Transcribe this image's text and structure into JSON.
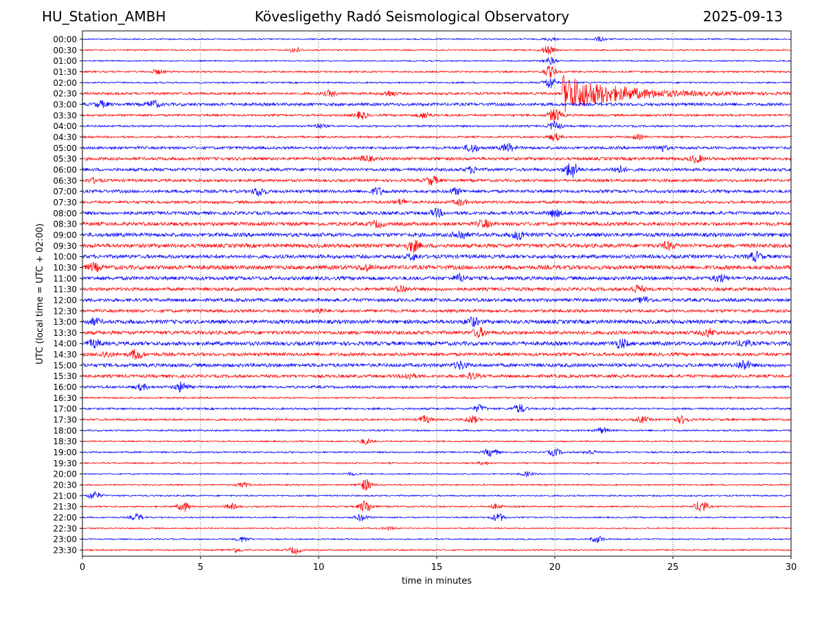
{
  "header": {
    "station": "HU_Station_AMBH",
    "observatory": "Kövesligethy Radó Seismological Observatory",
    "date": "2025-09-13"
  },
  "chart_data": {
    "type": "line",
    "title": "Kövesligethy Radó Seismological Observatory",
    "xlabel": "time in minutes",
    "ylabel": "UTC (local time = UTC + 02:00)",
    "xlim": [
      0,
      30
    ],
    "xticks": [
      "0",
      "5",
      "10",
      "15",
      "20",
      "25",
      "30"
    ],
    "grid": "vertical dotted lines at 5-minute ticks",
    "colors": {
      "even_rows": "#0000ff",
      "odd_rows": "#ff0000"
    },
    "rows": [
      {
        "label": "00:00",
        "amp": 1.0,
        "events": [
          {
            "t": 21.9,
            "a": 3
          },
          {
            "t": 19.8,
            "a": 2
          }
        ]
      },
      {
        "label": "00:30",
        "amp": 1.0,
        "events": [
          {
            "t": 9.0,
            "a": 4
          },
          {
            "t": 19.7,
            "a": 6
          }
        ]
      },
      {
        "label": "01:00",
        "amp": 0.9,
        "events": [
          {
            "t": 19.8,
            "a": 5
          }
        ]
      },
      {
        "label": "01:30",
        "amp": 1.2,
        "events": [
          {
            "t": 3.2,
            "a": 3
          },
          {
            "t": 19.8,
            "a": 8
          }
        ]
      },
      {
        "label": "02:00",
        "amp": 1.1,
        "events": [
          {
            "t": 19.8,
            "a": 9
          }
        ]
      },
      {
        "label": "02:30",
        "amp": 1.8,
        "events": [
          {
            "t": 10.5,
            "a": 4
          },
          {
            "t": 13.0,
            "a": 4
          },
          {
            "t": 20.3,
            "a": 28
          }
        ]
      },
      {
        "label": "03:00",
        "amp": 2.2,
        "events": [
          {
            "t": 0.8,
            "a": 4
          },
          {
            "t": 3.0,
            "a": 5
          }
        ]
      },
      {
        "label": "03:30",
        "amp": 1.6,
        "events": [
          {
            "t": 11.8,
            "a": 5
          },
          {
            "t": 14.5,
            "a": 4
          },
          {
            "t": 20.0,
            "a": 10
          }
        ]
      },
      {
        "label": "04:00",
        "amp": 1.4,
        "events": [
          {
            "t": 10.0,
            "a": 3
          },
          {
            "t": 20.0,
            "a": 6
          }
        ]
      },
      {
        "label": "04:30",
        "amp": 1.4,
        "events": [
          {
            "t": 20.0,
            "a": 5
          },
          {
            "t": 23.5,
            "a": 3
          }
        ]
      },
      {
        "label": "05:00",
        "amp": 2.0,
        "events": [
          {
            "t": 16.5,
            "a": 6
          },
          {
            "t": 18.0,
            "a": 6
          },
          {
            "t": 24.5,
            "a": 4
          }
        ]
      },
      {
        "label": "05:30",
        "amp": 2.2,
        "events": [
          {
            "t": 12.0,
            "a": 4
          },
          {
            "t": 26.0,
            "a": 5
          }
        ]
      },
      {
        "label": "06:00",
        "amp": 2.2,
        "events": [
          {
            "t": 16.5,
            "a": 4
          },
          {
            "t": 20.7,
            "a": 12
          },
          {
            "t": 22.7,
            "a": 5
          }
        ]
      },
      {
        "label": "06:30",
        "amp": 2.0,
        "events": [
          {
            "t": 14.8,
            "a": 6
          },
          {
            "t": 0.5,
            "a": 3
          }
        ]
      },
      {
        "label": "07:00",
        "amp": 2.2,
        "events": [
          {
            "t": 7.5,
            "a": 6
          },
          {
            "t": 12.5,
            "a": 5
          },
          {
            "t": 15.8,
            "a": 4
          }
        ]
      },
      {
        "label": "07:30",
        "amp": 2.0,
        "events": [
          {
            "t": 13.5,
            "a": 4
          },
          {
            "t": 16.0,
            "a": 4
          }
        ]
      },
      {
        "label": "08:00",
        "amp": 2.4,
        "events": [
          {
            "t": 15.0,
            "a": 5
          },
          {
            "t": 20.0,
            "a": 5
          }
        ]
      },
      {
        "label": "08:30",
        "amp": 2.6,
        "events": [
          {
            "t": 17.0,
            "a": 5
          },
          {
            "t": 12.5,
            "a": 4
          }
        ]
      },
      {
        "label": "09:00",
        "amp": 2.8,
        "events": [
          {
            "t": 16.0,
            "a": 6
          },
          {
            "t": 18.5,
            "a": 6
          }
        ]
      },
      {
        "label": "09:30",
        "amp": 2.8,
        "events": [
          {
            "t": 14.0,
            "a": 8
          },
          {
            "t": 24.8,
            "a": 5
          }
        ]
      },
      {
        "label": "10:00",
        "amp": 2.6,
        "events": [
          {
            "t": 28.5,
            "a": 6
          },
          {
            "t": 14.0,
            "a": 4
          }
        ]
      },
      {
        "label": "10:30",
        "amp": 3.0,
        "events": [
          {
            "t": 0.5,
            "a": 5
          },
          {
            "t": 12.0,
            "a": 4
          }
        ]
      },
      {
        "label": "11:00",
        "amp": 2.6,
        "events": [
          {
            "t": 16.0,
            "a": 5
          },
          {
            "t": 27.0,
            "a": 5
          }
        ]
      },
      {
        "label": "11:30",
        "amp": 2.4,
        "events": [
          {
            "t": 13.5,
            "a": 5
          },
          {
            "t": 23.5,
            "a": 5
          }
        ]
      },
      {
        "label": "12:00",
        "amp": 2.4,
        "events": [
          {
            "t": 23.8,
            "a": 4
          }
        ]
      },
      {
        "label": "12:30",
        "amp": 2.2,
        "events": [
          {
            "t": 10.0,
            "a": 3
          }
        ]
      },
      {
        "label": "13:00",
        "amp": 2.8,
        "events": [
          {
            "t": 16.5,
            "a": 6
          },
          {
            "t": 0.5,
            "a": 4
          }
        ]
      },
      {
        "label": "13:30",
        "amp": 2.6,
        "events": [
          {
            "t": 16.8,
            "a": 6
          },
          {
            "t": 26.5,
            "a": 5
          }
        ]
      },
      {
        "label": "14:00",
        "amp": 2.8,
        "events": [
          {
            "t": 0.5,
            "a": 5
          },
          {
            "t": 22.8,
            "a": 6
          },
          {
            "t": 28.0,
            "a": 4
          }
        ]
      },
      {
        "label": "14:30",
        "amp": 2.4,
        "events": [
          {
            "t": 2.3,
            "a": 7
          },
          {
            "t": 1.0,
            "a": 4
          }
        ]
      },
      {
        "label": "15:00",
        "amp": 2.6,
        "events": [
          {
            "t": 16.0,
            "a": 5
          },
          {
            "t": 28.0,
            "a": 7
          }
        ]
      },
      {
        "label": "15:30",
        "amp": 2.2,
        "events": [
          {
            "t": 13.8,
            "a": 4
          },
          {
            "t": 16.5,
            "a": 4
          }
        ]
      },
      {
        "label": "16:00",
        "amp": 1.8,
        "events": [
          {
            "t": 4.2,
            "a": 7
          },
          {
            "t": 2.5,
            "a": 4
          }
        ]
      },
      {
        "label": "16:30",
        "amp": 1.2,
        "events": []
      },
      {
        "label": "17:00",
        "amp": 1.4,
        "events": [
          {
            "t": 16.8,
            "a": 5
          },
          {
            "t": 18.5,
            "a": 6
          }
        ]
      },
      {
        "label": "17:30",
        "amp": 1.5,
        "events": [
          {
            "t": 14.5,
            "a": 5
          },
          {
            "t": 16.5,
            "a": 5
          },
          {
            "t": 23.7,
            "a": 4
          },
          {
            "t": 25.4,
            "a": 5
          }
        ]
      },
      {
        "label": "18:00",
        "amp": 1.2,
        "events": [
          {
            "t": 22.0,
            "a": 4
          }
        ]
      },
      {
        "label": "18:30",
        "amp": 1.0,
        "events": [
          {
            "t": 12.0,
            "a": 4
          }
        ]
      },
      {
        "label": "19:00",
        "amp": 1.2,
        "events": [
          {
            "t": 17.3,
            "a": 6
          },
          {
            "t": 20.0,
            "a": 5
          },
          {
            "t": 21.5,
            "a": 3
          }
        ]
      },
      {
        "label": "19:30",
        "amp": 1.0,
        "events": [
          {
            "t": 17.0,
            "a": 2
          }
        ]
      },
      {
        "label": "20:00",
        "amp": 0.9,
        "events": [
          {
            "t": 18.8,
            "a": 3
          },
          {
            "t": 11.4,
            "a": 2
          }
        ]
      },
      {
        "label": "20:30",
        "amp": 1.0,
        "events": [
          {
            "t": 6.8,
            "a": 3
          },
          {
            "t": 12.0,
            "a": 8
          }
        ]
      },
      {
        "label": "21:00",
        "amp": 1.1,
        "events": [
          {
            "t": 0.5,
            "a": 6
          }
        ]
      },
      {
        "label": "21:30",
        "amp": 1.1,
        "events": [
          {
            "t": 4.3,
            "a": 7
          },
          {
            "t": 6.3,
            "a": 4
          },
          {
            "t": 12.0,
            "a": 9
          },
          {
            "t": 26.2,
            "a": 9
          },
          {
            "t": 17.5,
            "a": 3
          }
        ]
      },
      {
        "label": "22:00",
        "amp": 1.0,
        "events": [
          {
            "t": 2.3,
            "a": 5
          },
          {
            "t": 11.8,
            "a": 5
          },
          {
            "t": 17.6,
            "a": 6
          }
        ]
      },
      {
        "label": "22:30",
        "amp": 0.9,
        "events": [
          {
            "t": 13.0,
            "a": 2
          }
        ]
      },
      {
        "label": "23:00",
        "amp": 0.9,
        "events": [
          {
            "t": 6.8,
            "a": 4
          },
          {
            "t": 21.8,
            "a": 5
          }
        ]
      },
      {
        "label": "23:30",
        "amp": 1.0,
        "events": [
          {
            "t": 6.5,
            "a": 3
          },
          {
            "t": 9.0,
            "a": 5
          }
        ]
      }
    ]
  }
}
